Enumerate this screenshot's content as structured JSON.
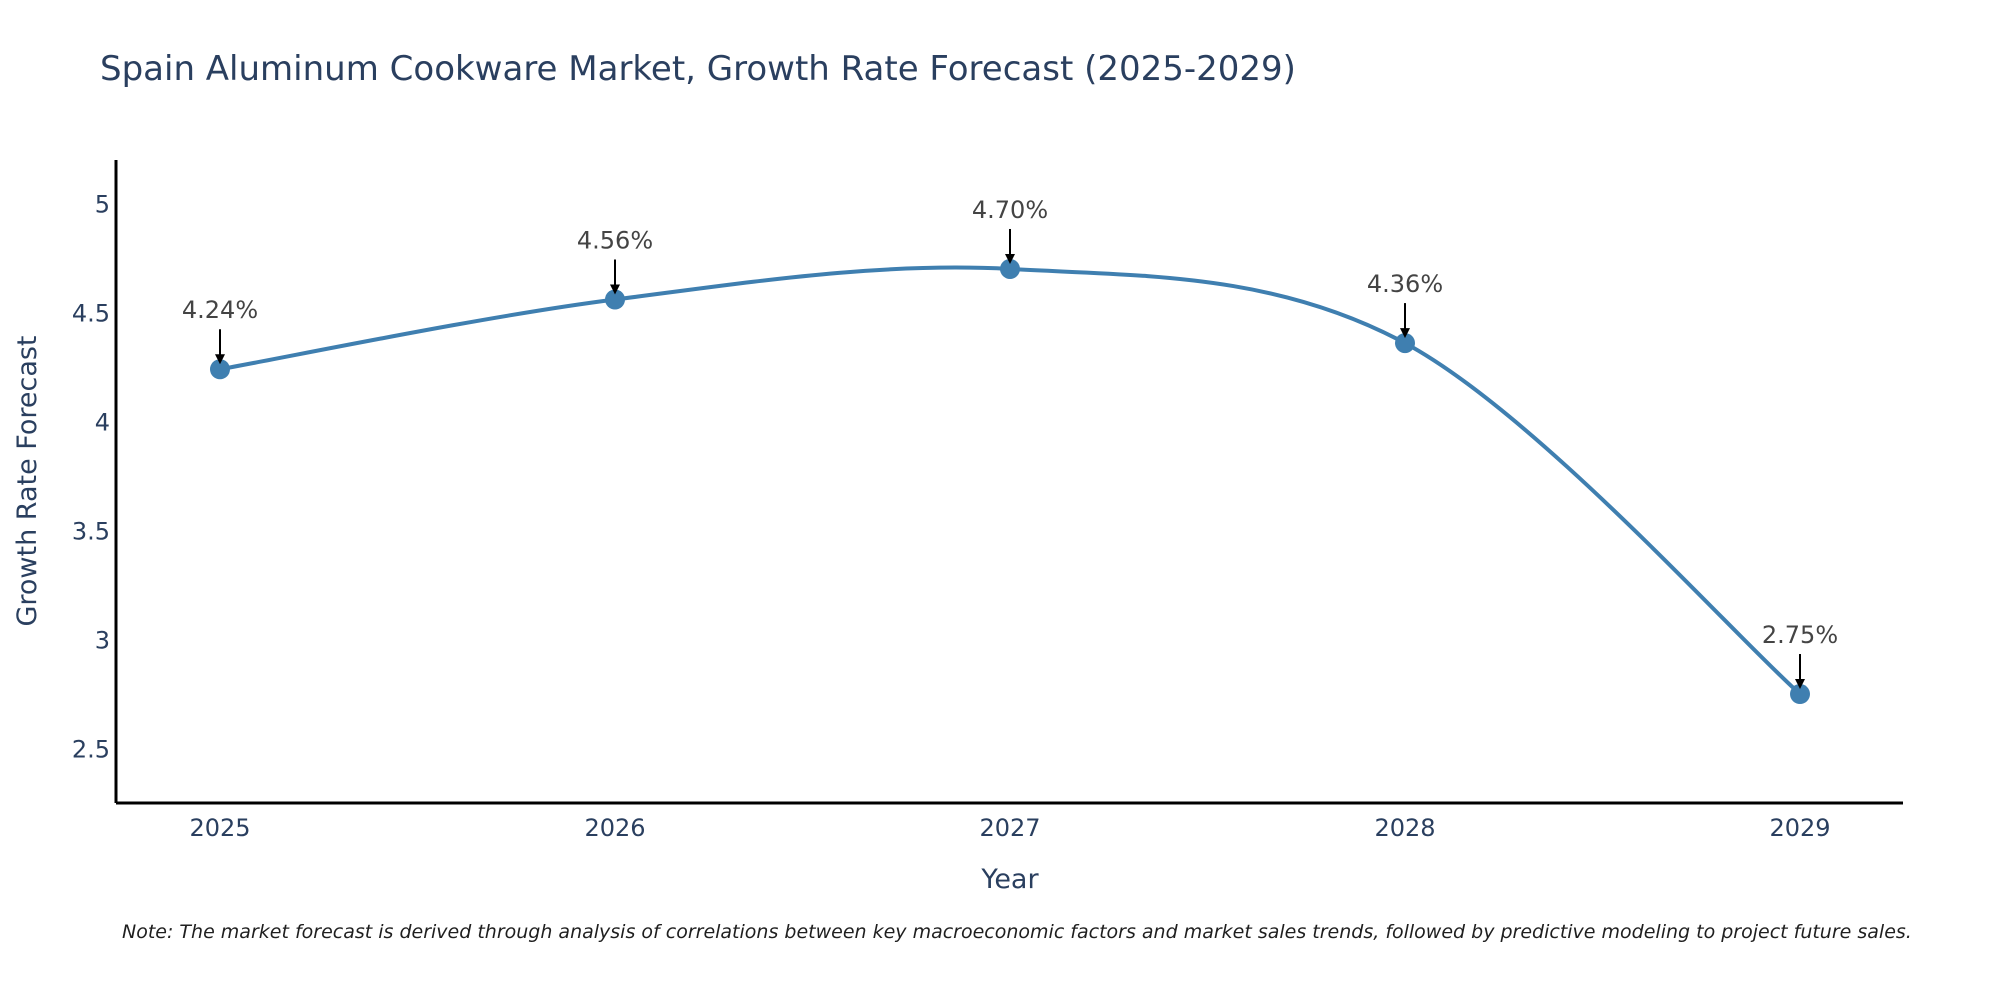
{
  "chart_data": {
    "type": "line",
    "title": "Spain Aluminum Cookware Market, Growth Rate Forecast (2025-2029)",
    "xlabel": "Year",
    "ylabel": "Growth Rate Forecast",
    "categories": [
      "2025",
      "2026",
      "2027",
      "2028",
      "2029"
    ],
    "values": [
      4.24,
      4.56,
      4.7,
      4.36,
      2.75
    ],
    "data_labels": [
      "4.24%",
      "4.56%",
      "4.70%",
      "4.36%",
      "2.75%"
    ],
    "ylim": [
      2.25,
      5.2
    ],
    "yticks": [
      2.5,
      3,
      3.5,
      4,
      4.5,
      5
    ],
    "ytick_labels": [
      "2.5",
      "3",
      "3.5",
      "4",
      "4.5",
      "5"
    ],
    "grid": false,
    "legend": "none",
    "note": "Note: The market forecast is derived through analysis of correlations between key macroeconomic factors and market sales trends, followed by predictive modeling to project future sales.",
    "colors": {
      "line": "#3f7fb0",
      "marker": "#3f7fb0",
      "axis": "#000000",
      "text": "#2a3f5f",
      "annotation_text": "#444444",
      "arrow": "#000000"
    }
  }
}
